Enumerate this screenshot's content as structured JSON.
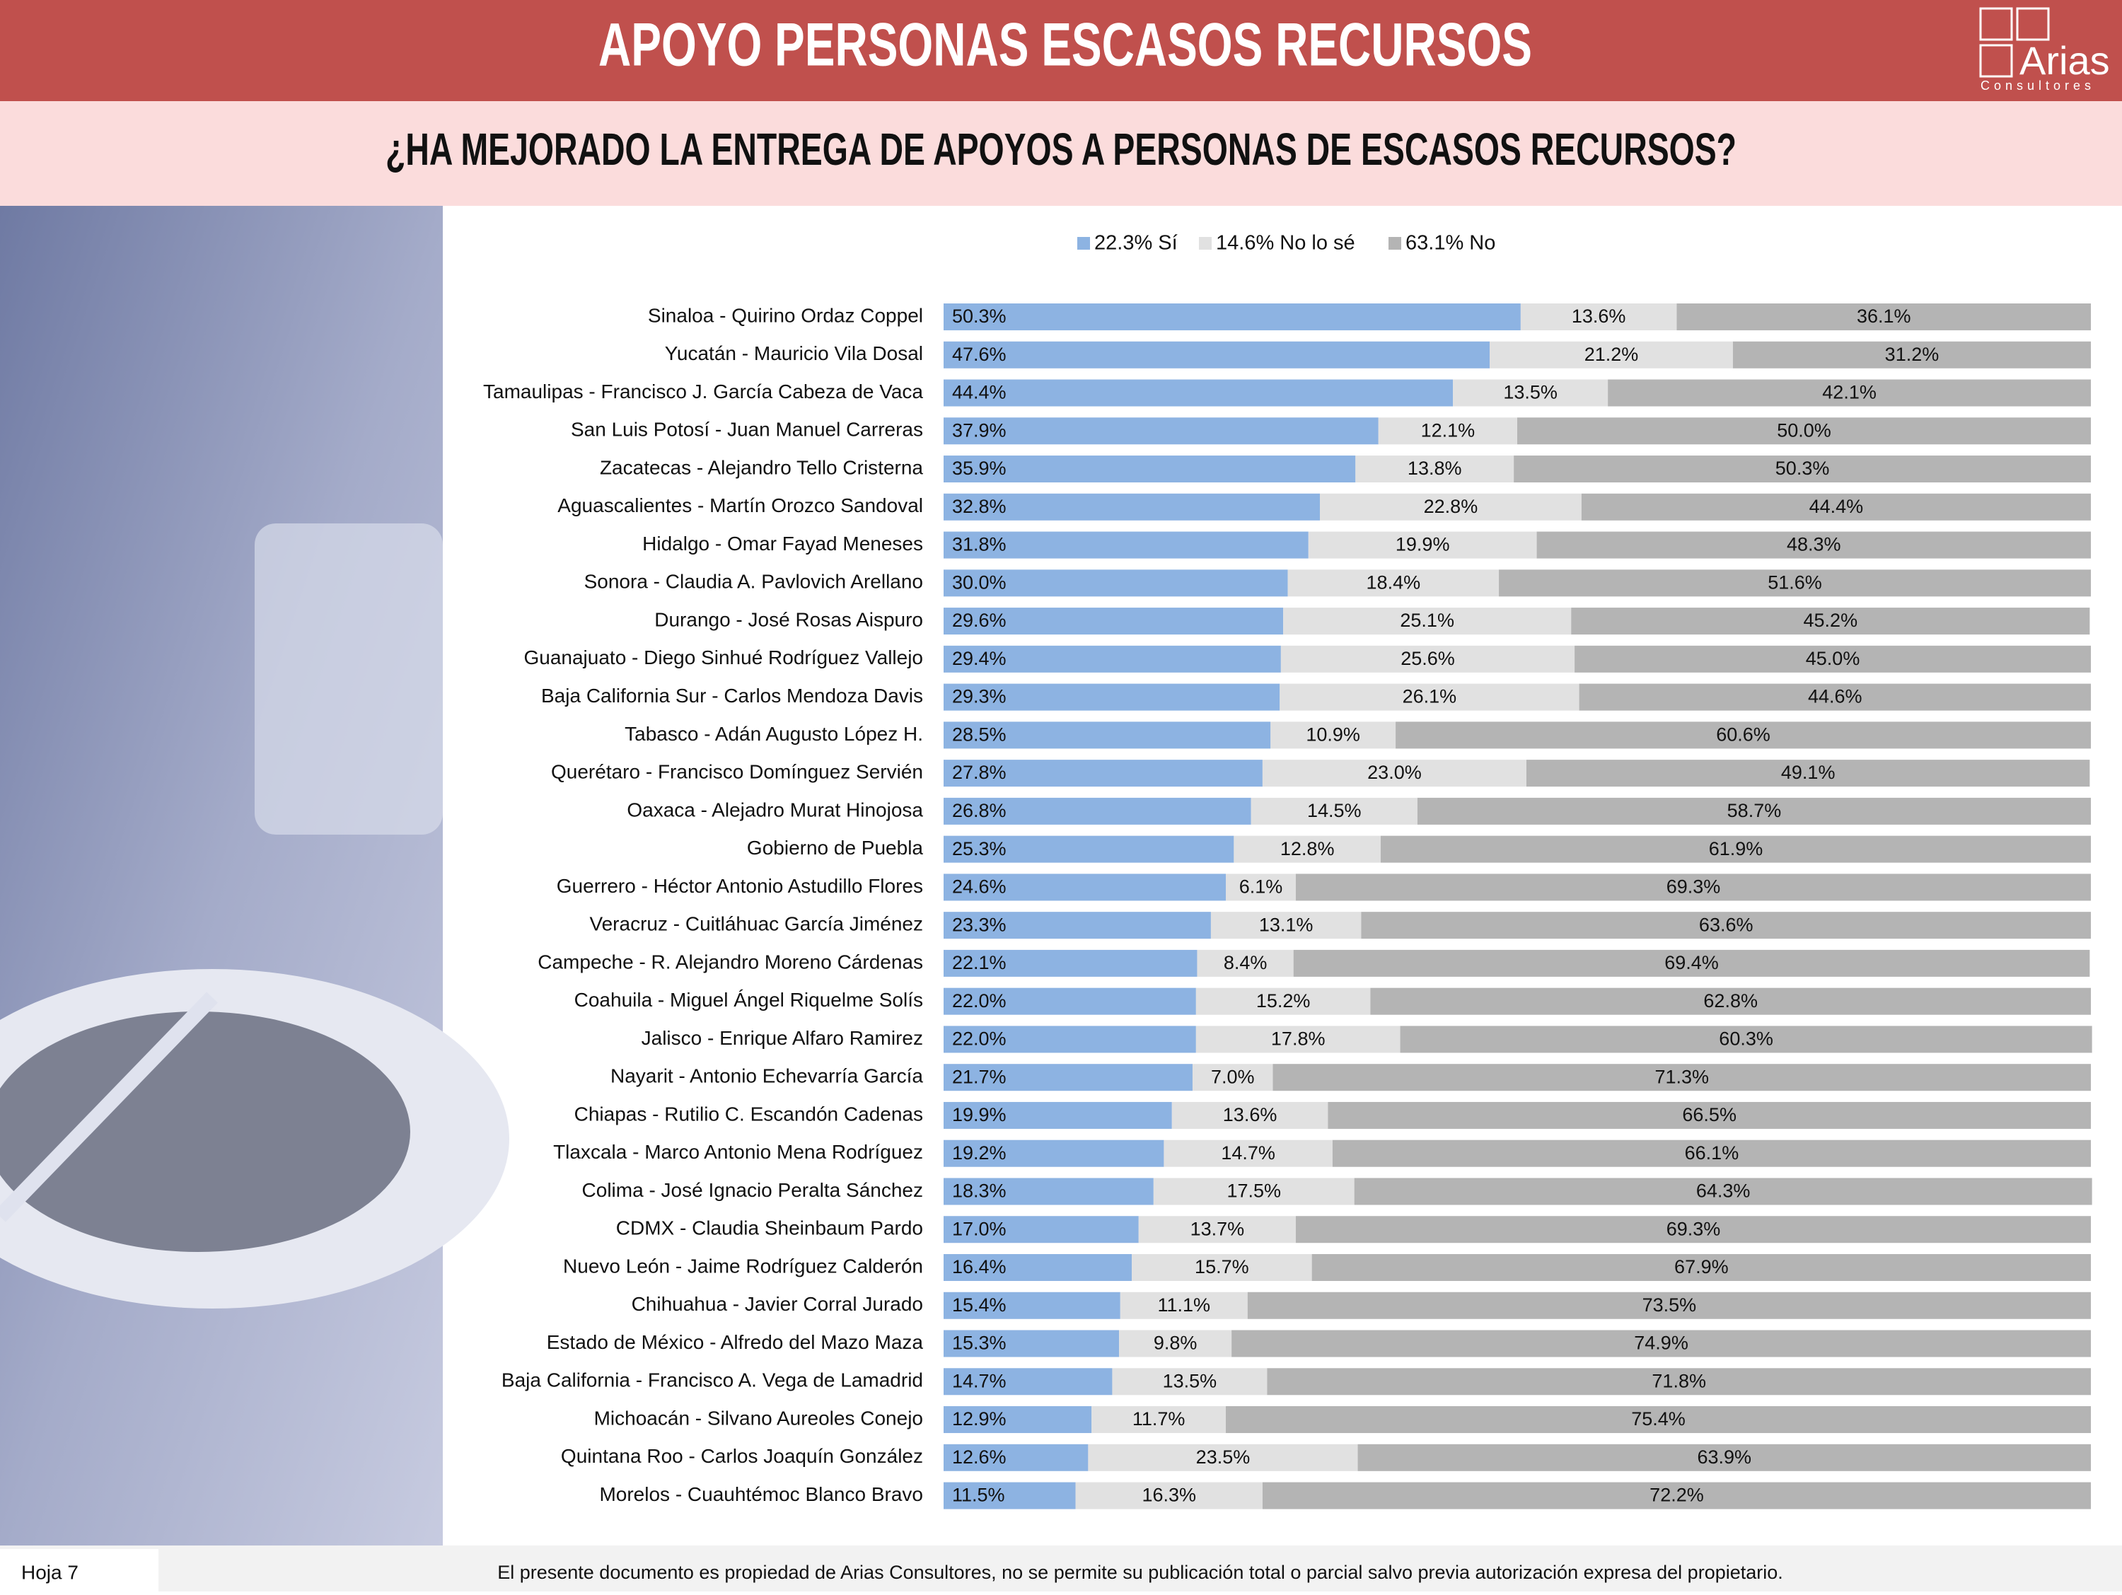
{
  "header": {
    "title": "APOYO PERSONAS ESCASOS RECURSOS",
    "logo": "Arias",
    "logo_subtitle": "Consultores"
  },
  "chart_data": {
    "type": "bar",
    "stacked": true,
    "title": "¿HA MEJORADO LA ENTREGA DE APOYOS A PERSONAS DE ESCASOS RECURSOS?",
    "xlim": [
      0,
      100
    ],
    "categories": [
      "Sinaloa - Quirino Ordaz Coppel",
      "Yucatán - Mauricio Vila Dosal",
      "Tamaulipas - Francisco J. García Cabeza de Vaca",
      "San Luis Potosí - Juan Manuel Carreras",
      "Zacatecas - Alejandro Tello Cristerna",
      "Aguascalientes - Martín Orozco Sandoval",
      "Hidalgo - Omar Fayad Meneses",
      "Sonora - Claudia A. Pavlovich Arellano",
      "Durango - José Rosas Aispuro",
      "Guanajuato - Diego Sinhué Rodríguez Vallejo",
      "Baja California Sur - Carlos Mendoza Davis",
      "Tabasco - Adán Augusto López H.",
      "Querétaro - Francisco Domínguez Servién",
      "Oaxaca - Alejadro Murat Hinojosa",
      "Gobierno de Puebla",
      "Guerrero - Héctor Antonio Astudillo Flores",
      "Veracruz - Cuitláhuac García Jiménez",
      "Campeche - R. Alejandro Moreno Cárdenas",
      "Coahuila - Miguel Ángel Riquelme Solís",
      "Jalisco - Enrique Alfaro Ramirez",
      "Nayarit - Antonio Echevarría García",
      "Chiapas - Rutilio C. Escandón Cadenas",
      "Tlaxcala - Marco Antonio Mena Rodríguez",
      "Colima - José Ignacio Peralta Sánchez",
      "CDMX - Claudia Sheinbaum Pardo",
      "Nuevo León - Jaime Rodríguez Calderón",
      "Chihuahua - Javier Corral Jurado",
      "Estado de México - Alfredo del Mazo Maza",
      "Baja California - Francisco A. Vega de Lamadrid",
      "Michoacán - Silvano Aureoles Conejo",
      "Quintana Roo - Carlos Joaquín González",
      "Morelos - Cuauhtémoc Blanco Bravo"
    ],
    "series": [
      {
        "name": "22.3% Sí",
        "color": "#8db3e2",
        "values": [
          50.3,
          47.6,
          44.4,
          37.9,
          35.9,
          32.8,
          31.8,
          30.0,
          29.6,
          29.4,
          29.3,
          28.5,
          27.8,
          26.8,
          25.3,
          24.6,
          23.3,
          22.1,
          22.0,
          22.0,
          21.7,
          19.9,
          19.2,
          18.3,
          17.0,
          16.4,
          15.4,
          15.3,
          14.7,
          12.9,
          12.6,
          11.5
        ],
        "value_labels": [
          "50.3%",
          "47.6%",
          "44.4%",
          "37.9%",
          "35.9%",
          "32.8%",
          "31.8%",
          "30.0%",
          "29.6%",
          "29.4%",
          "29.3%",
          "28.5%",
          "27.8%",
          "26.8%",
          "25.3%",
          "24.6%",
          "23.3%",
          "22.1%",
          "22.0%",
          "22.0%",
          "21.7%",
          "19.9%",
          "19.2%",
          "18.3%",
          "17.0%",
          "16.4%",
          "15.4%",
          "15.3%",
          "14.7%",
          "12.9%",
          "12.6%",
          "11.5%"
        ]
      },
      {
        "name": "14.6% No lo sé",
        "color": "#e1e1e1",
        "values": [
          13.6,
          21.2,
          13.5,
          12.1,
          13.8,
          22.8,
          19.9,
          18.4,
          25.1,
          25.6,
          26.1,
          10.9,
          23.0,
          14.5,
          12.8,
          6.1,
          13.1,
          8.4,
          15.2,
          17.8,
          7.0,
          13.6,
          14.7,
          17.5,
          13.7,
          15.7,
          11.1,
          9.8,
          13.5,
          11.7,
          23.5,
          16.3
        ],
        "value_labels": [
          "13.6%",
          "21.2%",
          "13.5%",
          "12.1%",
          "13.8%",
          "22.8%",
          "19.9%",
          "18.4%",
          "25.1%",
          "25.6%",
          "26.1%",
          "10.9%",
          "23.0%",
          "14.5%",
          "12.8%",
          "6.1%",
          "13.1%",
          "8.4%",
          "15.2%",
          "17.8%",
          "7.0%",
          "13.6%",
          "14.7%",
          "17.5%",
          "13.7%",
          "15.7%",
          "11.1%",
          "9.8%",
          "13.5%",
          "11.7%",
          "23.5%",
          "16.3%"
        ]
      },
      {
        "name": "63.1% No",
        "color": "#b4b4b4",
        "values": [
          36.1,
          31.2,
          42.1,
          50.0,
          50.3,
          44.4,
          48.3,
          51.6,
          45.2,
          45.0,
          44.6,
          60.6,
          49.1,
          58.7,
          61.9,
          69.3,
          63.6,
          69.4,
          62.8,
          60.3,
          71.3,
          66.5,
          66.1,
          64.3,
          69.3,
          67.9,
          73.5,
          74.9,
          71.8,
          75.4,
          63.9,
          72.2
        ],
        "value_labels": [
          "36.1%",
          "31.2%",
          "42.1%",
          "50.0%",
          "50.3%",
          "44.4%",
          "48.3%",
          "51.6%",
          "45.2%",
          "45.0%",
          "44.6%",
          "60.6%",
          "49.1%",
          "58.7%",
          "61.9%",
          "69.3%",
          "63.6%",
          "69.4%",
          "62.8%",
          "60.3%",
          "71.3%",
          "66.5%",
          "66.1%",
          "64.3%",
          "69.3%",
          "67.9%",
          "73.5%",
          "74.9%",
          "71.8%",
          "75.4%",
          "63.9%",
          "72.2%"
        ]
      }
    ]
  },
  "footer": {
    "page": "Hoja 7",
    "notice": "El presente documento es propiedad de Arias Consultores, no se permite su publicación total o parcial salvo previa autorización expresa del propietario."
  }
}
